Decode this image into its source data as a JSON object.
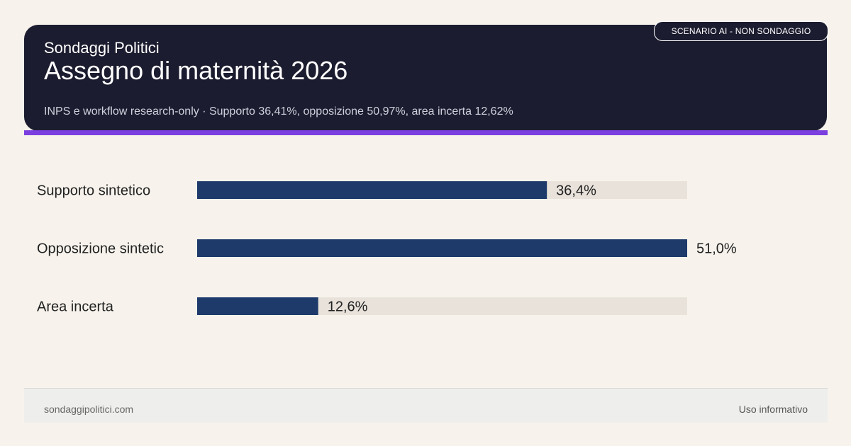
{
  "header": {
    "brand": "Sondaggi Politici",
    "title": "Assegno di maternità 2026",
    "subtitle": "INPS e workflow research-only · Supporto 36,41%, opposizione 50,97%, area incerta 12,62%",
    "badge": "SCENARIO AI - NON SONDAGGIO"
  },
  "chart_data": {
    "type": "bar",
    "orientation": "horizontal",
    "categories": [
      "Supporto sintetico",
      "Opposizione sintetic",
      "Area incerta"
    ],
    "values": [
      36.4,
      51.0,
      12.6
    ],
    "value_labels": [
      "36,4%",
      "51,0%",
      "12,6%"
    ],
    "xlim": [
      0,
      51.0
    ],
    "grid": false,
    "colors": {
      "bar": "#1e3a6b",
      "track": "#e8e2da",
      "label": "#222222"
    }
  },
  "footer": {
    "left": "sondaggipolitici.com",
    "right": "Uso informativo"
  }
}
